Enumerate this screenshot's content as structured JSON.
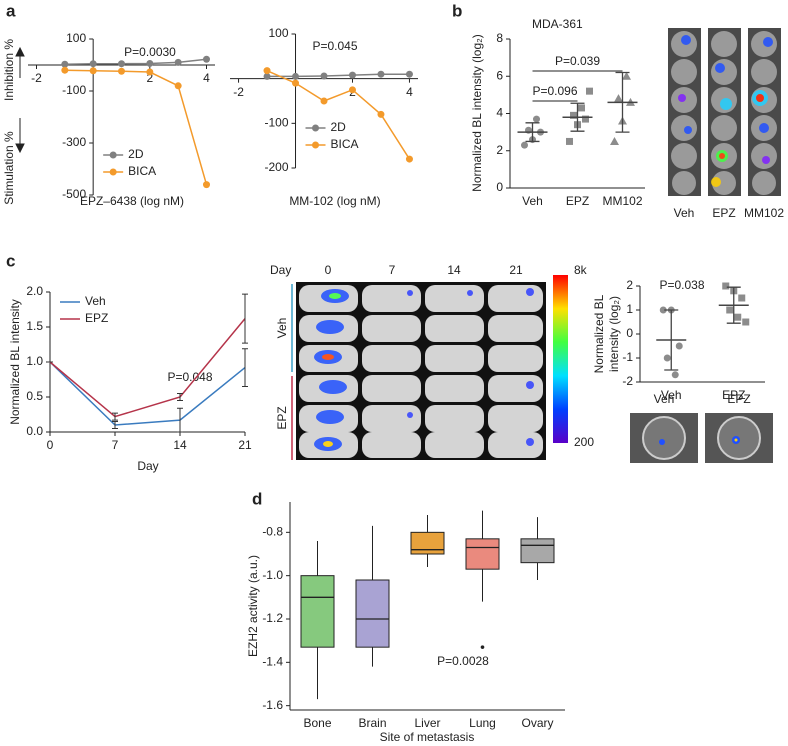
{
  "chart_data": [
    {
      "type": "line",
      "panel": "a",
      "x": [
        -1,
        0,
        1,
        2,
        3,
        4
      ],
      "xlim": [
        -2.3,
        4.3
      ],
      "xticks": [
        -2,
        2,
        4
      ],
      "ylim": [
        -500,
        100
      ],
      "yticks": [
        -500,
        -300,
        -100,
        100
      ],
      "axes_at_zero": true,
      "markers": true,
      "xlabel": "EPZ–6438 (log nM)",
      "ylabel_top": "Inhibition %",
      "ylabel_bottom": "Stimulation %",
      "annotation": "P=0.0030",
      "legend": "lower left",
      "series": [
        {
          "name": "2D",
          "color": "#808080",
          "values": [
            3,
            5,
            5,
            6,
            10,
            22
          ]
        },
        {
          "name": "BICA",
          "color": "#f39a2b",
          "values": [
            -20,
            -22,
            -24,
            -27,
            -80,
            -460
          ]
        }
      ]
    },
    {
      "type": "line",
      "x": [
        -1,
        0,
        1,
        2,
        3,
        4
      ],
      "xlim": [
        -2.3,
        4.3
      ],
      "xticks": [
        -2,
        2,
        4
      ],
      "ylim": [
        -200,
        100
      ],
      "yticks": [
        -200,
        -100,
        100
      ],
      "axes_at_zero": true,
      "markers": true,
      "xlabel": "MM-102 (log nM)",
      "annotation": "P=0.045",
      "legend": "lower left",
      "series": [
        {
          "name": "2D",
          "color": "#808080",
          "values": [
            5,
            5,
            6,
            8,
            10,
            10
          ]
        },
        {
          "name": "BICA",
          "color": "#f39a2b",
          "values": [
            18,
            -10,
            -50,
            -25,
            -80,
            -180
          ]
        }
      ]
    },
    {
      "type": "dot",
      "panel": "b",
      "subtitle": "MDA-361",
      "ylabel": "Normalized BL intensity (log₂)",
      "ylim": [
        0,
        8
      ],
      "yticks": [
        0,
        2,
        4,
        6,
        8
      ],
      "series": [
        {
          "name": "Veh",
          "color": "#8c8c8c",
          "marker": "circle",
          "values": [
            2.3,
            2.6,
            3.0,
            3.1,
            3.7
          ],
          "mean": 3.0,
          "sd": 0.5
        },
        {
          "name": "EPZ",
          "color": "#8c8c8c",
          "marker": "square",
          "values": [
            2.5,
            3.4,
            3.7,
            3.9,
            4.3,
            5.2
          ],
          "mean": 3.8,
          "sd": 0.75
        },
        {
          "name": "MM102",
          "color": "#8c8c8c",
          "marker": "triangle",
          "values": [
            2.5,
            3.6,
            4.6,
            4.8,
            6.0
          ],
          "mean": 4.6,
          "sd": 1.6
        }
      ],
      "comparisons": [
        {
          "between": [
            "Veh",
            "EPZ"
          ],
          "label": "P=0.096"
        },
        {
          "between": [
            "Veh",
            "MM102"
          ],
          "label": "P=0.039"
        }
      ]
    },
    {
      "type": "line",
      "panel": "c",
      "x": [
        0,
        7,
        14,
        21
      ],
      "xlim": [
        0,
        21
      ],
      "xticks": [
        0,
        7,
        14,
        21
      ],
      "ylim": [
        0,
        2
      ],
      "yticks": [
        {
          "value": 0,
          "label": "0.0"
        },
        0.5,
        {
          "value": 1,
          "label": "1.0"
        },
        1.5,
        {
          "value": 2,
          "label": "2.0"
        }
      ],
      "xlabel": "Day",
      "ylabel": "Normalized BL intensity",
      "annotation": "P=0.048",
      "legend": "upper left",
      "series": [
        {
          "name": "Veh",
          "color": "#3a7bbf",
          "values": [
            1.0,
            0.1,
            0.17,
            0.92
          ],
          "errors": [
            0,
            0.05,
            0.17,
            0.27
          ]
        },
        {
          "name": "EPZ",
          "color": "#b5344a",
          "values": [
            1.0,
            0.22,
            0.5,
            1.62
          ],
          "errors": [
            0,
            0.05,
            0.05,
            0.35
          ]
        }
      ]
    },
    {
      "type": "dot",
      "ylabel": [
        "Normalized BL",
        "intensity (log₂)"
      ],
      "ylim": [
        -2,
        2
      ],
      "yticks": [
        -2,
        -1,
        0,
        1,
        2
      ],
      "annotation": "P=0.038",
      "series": [
        {
          "name": "Veh",
          "color": "#8c8c8c",
          "marker": "circle",
          "values": [
            1.0,
            1.0,
            -0.5,
            -1.0,
            -1.7
          ],
          "mean": -0.25,
          "sd": 1.25
        },
        {
          "name": "EPZ",
          "color": "#8c8c8c",
          "marker": "square",
          "values": [
            2.0,
            1.8,
            1.5,
            1.0,
            0.7,
            0.5
          ],
          "mean": 1.2,
          "sd": 0.75
        }
      ]
    },
    {
      "type": "box",
      "panel": "d",
      "categories": [
        "Bone",
        "Brain",
        "Liver",
        "Lung",
        "Ovary"
      ],
      "ylim": [
        -1.62,
        -0.66
      ],
      "yticks": [
        -1.6,
        -1.4,
        -1.2,
        {
          "value": -1,
          "label": "-1.0"
        },
        -0.8
      ],
      "xlabel": "Site of metastasis",
      "ylabel": "EZH2 activity (a.u.)",
      "annotation": "P=0.0028",
      "colors": [
        "#86c97e",
        "#a9a3d3",
        "#e8a23c",
        "#ea8a7e",
        "#a8a8a8"
      ],
      "boxes": [
        {
          "min": -1.57,
          "q1": -1.33,
          "median": -1.1,
          "q3": -1.0,
          "max": -0.84
        },
        {
          "min": -1.42,
          "q1": -1.33,
          "median": -1.2,
          "q3": -1.02,
          "max": -0.77
        },
        {
          "min": -0.96,
          "q1": -0.9,
          "median": -0.88,
          "q3": -0.8,
          "max": -0.72
        },
        {
          "min": -1.12,
          "q1": -0.97,
          "median": -0.87,
          "q3": -0.83,
          "max": -0.7,
          "outliers": [
            -1.33
          ]
        },
        {
          "min": -1.02,
          "q1": -0.94,
          "median": -0.86,
          "q3": -0.83,
          "max": -0.73
        }
      ]
    }
  ],
  "images": {
    "b": {
      "labels": [
        "Veh",
        "EPZ",
        "MM102"
      ]
    },
    "c": {
      "day_label": "Day",
      "days": [
        "0",
        "7",
        "14",
        "21"
      ],
      "groups": [
        "Veh",
        "EPZ"
      ],
      "colorbar": [
        "8k",
        "200"
      ]
    },
    "c2": {
      "labels": [
        "Veh",
        "EPZ"
      ]
    }
  }
}
